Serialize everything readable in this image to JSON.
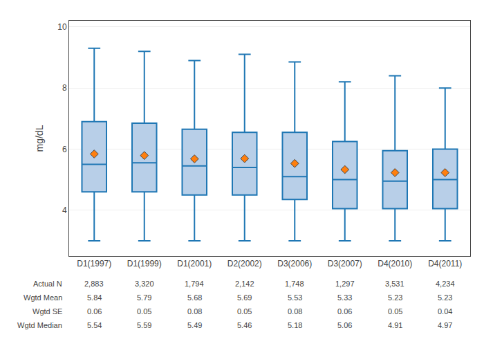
{
  "chart_data": {
    "type": "box",
    "ylabel": "mg/dL",
    "categories": [
      "D1(1997)",
      "D1(1999)",
      "D1(2001)",
      "D2(2002)",
      "D3(2006)",
      "D3(2007)",
      "D4(2010)",
      "D4(2011)"
    ],
    "boxes": [
      {
        "q1": 4.6,
        "median": 5.5,
        "q3": 6.9,
        "whislo": 3.0,
        "whishi": 9.3,
        "mean": 5.84
      },
      {
        "q1": 4.6,
        "median": 5.55,
        "q3": 6.85,
        "whislo": 3.0,
        "whishi": 9.2,
        "mean": 5.79
      },
      {
        "q1": 4.5,
        "median": 5.45,
        "q3": 6.65,
        "whislo": 3.0,
        "whishi": 8.9,
        "mean": 5.68
      },
      {
        "q1": 4.5,
        "median": 5.4,
        "q3": 6.55,
        "whislo": 3.0,
        "whishi": 9.1,
        "mean": 5.69
      },
      {
        "q1": 4.35,
        "median": 5.1,
        "q3": 6.55,
        "whislo": 3.0,
        "whishi": 8.85,
        "mean": 5.53
      },
      {
        "q1": 4.05,
        "median": 5.0,
        "q3": 6.25,
        "whislo": 3.0,
        "whishi": 8.2,
        "mean": 5.33
      },
      {
        "q1": 4.05,
        "median": 4.95,
        "q3": 5.95,
        "whislo": 3.0,
        "whishi": 8.4,
        "mean": 5.23
      },
      {
        "q1": 4.05,
        "median": 5.0,
        "q3": 6.0,
        "whislo": 3.0,
        "whishi": 8.0,
        "mean": 5.23
      }
    ],
    "color": "#b8cfe8",
    "marker": "diamond",
    "ylim": [
      2.5,
      10.2
    ],
    "yticks": [
      4,
      6,
      8,
      10
    ],
    "grid": true,
    "table": [
      {
        "label": "Actual N",
        "values": [
          "2,883",
          "3,320",
          "1,794",
          "2,142",
          "1,748",
          "1,297",
          "3,531",
          "4,234"
        ]
      },
      {
        "label": "Wgtd Mean",
        "values": [
          "5.84",
          "5.79",
          "5.68",
          "5.69",
          "5.53",
          "5.33",
          "5.23",
          "5.23"
        ]
      },
      {
        "label": "Wgtd SE",
        "values": [
          "0.06",
          "0.05",
          "0.08",
          "0.05",
          "0.08",
          "0.06",
          "0.05",
          "0.04"
        ]
      },
      {
        "label": "Wgtd Median",
        "values": [
          "5.54",
          "5.59",
          "5.49",
          "5.46",
          "5.18",
          "5.06",
          "4.91",
          "4.97"
        ]
      }
    ]
  }
}
